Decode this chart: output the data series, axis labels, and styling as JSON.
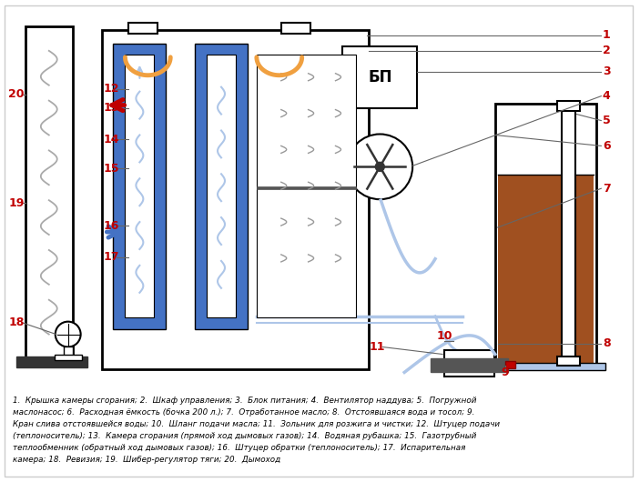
{
  "bg_color": "#ffffff",
  "border_color": "#000000",
  "blue_color": "#4472c4",
  "light_blue": "#aec6e8",
  "orange_color": "#f0a040",
  "red_color": "#c00000",
  "brown_color": "#a05020",
  "gray_color": "#aaaaaa",
  "number_color": "#c00000",
  "line_color": "#666666",
  "caption_line1": "1.  Крышка камеры сгорания; 2.  Шкаф управления; 3.  Блок питания; 4.  Вентилятор наддува; 5.  Погружной",
  "caption_line2": "маслонасос; 6.  Расходная ёмкость (бочка 200 л.); 7.  Отработанное масло; 8.  Отстоявшаяся вода и тосол; 9.",
  "caption_line3": "Кран слива отстоявшейся воды; 10.  Шланг подачи масла; 11.  Зольник для розжига и чистки; 12.  Штуцер подачи",
  "caption_line4": "(теплоноситель); 13.  Камера сгорания (прямой ход дымовых газов); 14.  Водяная рубашка; 15.  Газотрубный",
  "caption_line5": "теплообменник (обратный ход дымовых газов); 16.  Штуцер обратки (теплоноситель); 17.  Испарительная",
  "caption_line6": "камера; 18.  Ревизия; 19.  Шибер-регулятор тяги; 20.  Дымоход"
}
